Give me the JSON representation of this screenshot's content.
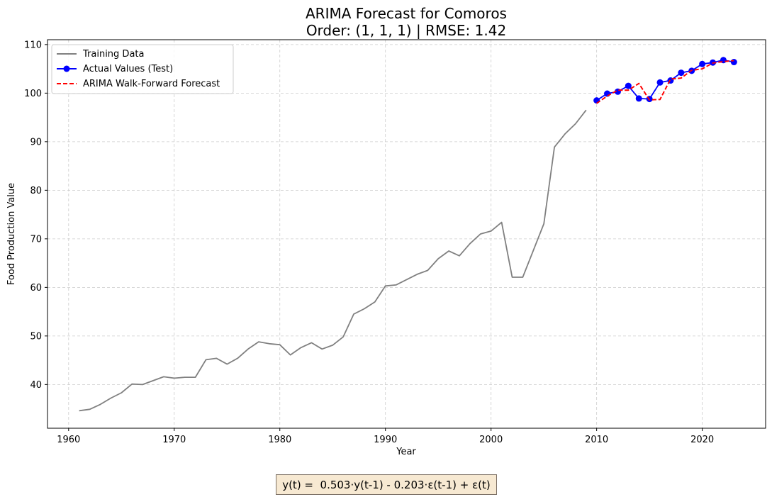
{
  "chart_data": {
    "type": "line",
    "title": "ARIMA Forecast for Comoros",
    "subtitle": "Order: (1, 1, 1) | RMSE: 1.42",
    "xlabel": "Year",
    "ylabel": "Food Production Value",
    "xlim": [
      1958,
      2026
    ],
    "ylim": [
      31,
      111
    ],
    "x_ticks": [
      1960,
      1970,
      1980,
      1990,
      2000,
      2010,
      2020
    ],
    "y_ticks": [
      40,
      50,
      60,
      70,
      80,
      90,
      100,
      110
    ],
    "grid": true,
    "legend_position": "top-left",
    "series": [
      {
        "name": "Training Data",
        "style": "solid",
        "color": "#808080",
        "x": [
          1961,
          1962,
          1963,
          1964,
          1965,
          1966,
          1967,
          1968,
          1969,
          1970,
          1971,
          1972,
          1973,
          1974,
          1975,
          1976,
          1977,
          1978,
          1979,
          1980,
          1981,
          1982,
          1983,
          1984,
          1985,
          1986,
          1987,
          1988,
          1989,
          1990,
          1991,
          1992,
          1993,
          1994,
          1995,
          1996,
          1997,
          1998,
          1999,
          2000,
          2001,
          2002,
          2003,
          2004,
          2005,
          2006,
          2007,
          2008,
          2009
        ],
        "y": [
          34.6,
          34.9,
          35.9,
          37.2,
          38.3,
          40.1,
          40.0,
          40.8,
          41.6,
          41.3,
          41.5,
          41.5,
          45.1,
          45.4,
          44.2,
          45.4,
          47.3,
          48.8,
          48.4,
          48.2,
          46.1,
          47.6,
          48.6,
          47.3,
          48.1,
          49.8,
          54.5,
          55.6,
          57.0,
          60.3,
          60.5,
          61.6,
          62.7,
          63.5,
          65.9,
          67.5,
          66.5,
          69.0,
          71.0,
          71.6,
          73.4,
          62.1,
          62.1,
          67.6,
          73.1,
          88.9,
          91.6,
          93.7,
          96.5
        ]
      },
      {
        "name": "Actual Values (Test)",
        "style": "solid-markers",
        "color": "#0000ff",
        "x": [
          2010,
          2011,
          2012,
          2013,
          2014,
          2015,
          2016,
          2017,
          2018,
          2019,
          2020,
          2021,
          2022,
          2023
        ],
        "y": [
          98.5,
          99.9,
          100.3,
          101.5,
          98.9,
          98.8,
          102.2,
          102.6,
          104.2,
          104.6,
          106.0,
          106.3,
          106.8,
          106.4
        ]
      },
      {
        "name": "ARIMA Walk-Forward Forecast",
        "style": "dashed",
        "color": "#ff0000",
        "x": [
          2010,
          2011,
          2012,
          2013,
          2014,
          2015,
          2016,
          2017,
          2018,
          2019,
          2020,
          2021,
          2022,
          2023
        ],
        "y": [
          97.9,
          99.4,
          100.6,
          100.6,
          102.0,
          98.6,
          98.7,
          102.9,
          103.1,
          104.7,
          105.0,
          106.2,
          106.5,
          106.7
        ]
      }
    ]
  },
  "formula": "y(t) =  0.503·y(t-1) - 0.203·ε(t-1) + ε(t)"
}
